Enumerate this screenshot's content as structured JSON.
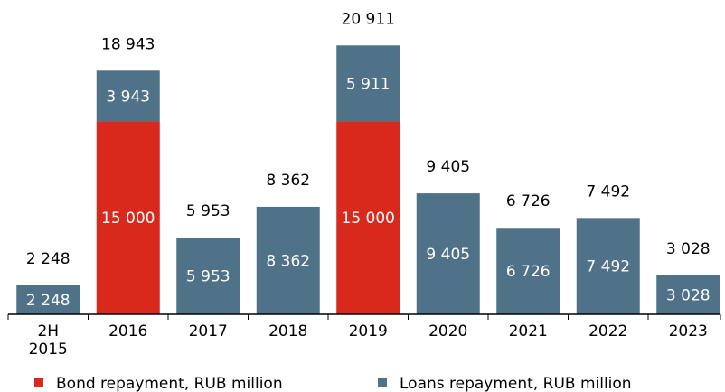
{
  "chart_data": {
    "type": "stacked-bar",
    "categories": [
      "2H 2015",
      "2016",
      "2017",
      "2018",
      "2019",
      "2020",
      "2021",
      "2022",
      "2023"
    ],
    "series": [
      {
        "name": "Bond repayment, RUB million",
        "color": "#d9291c",
        "values": [
          null,
          15000,
          null,
          null,
          15000,
          null,
          null,
          null,
          null
        ],
        "value_labels": [
          null,
          "15 000",
          null,
          null,
          "15 000",
          null,
          null,
          null,
          null
        ]
      },
      {
        "name": "Loans repayment, RUB million",
        "color": "#4f7289",
        "values": [
          2248,
          3943,
          5953,
          8362,
          5911,
          9405,
          6726,
          7492,
          3028
        ],
        "value_labels": [
          "2 248",
          "3 943",
          "5 953",
          "8 362",
          "5 911",
          "9 405",
          "6 726",
          "7 492",
          "3 028"
        ]
      }
    ],
    "totals": [
      2248,
      18943,
      5953,
      8362,
      20911,
      9405,
      6726,
      7492,
      3028
    ],
    "total_labels": [
      "2 248",
      "18 943",
      "5 953",
      "8 362",
      "20 911",
      "9 405",
      "6 726",
      "7 492",
      "3 028"
    ],
    "ylim": [
      0,
      21000
    ]
  }
}
